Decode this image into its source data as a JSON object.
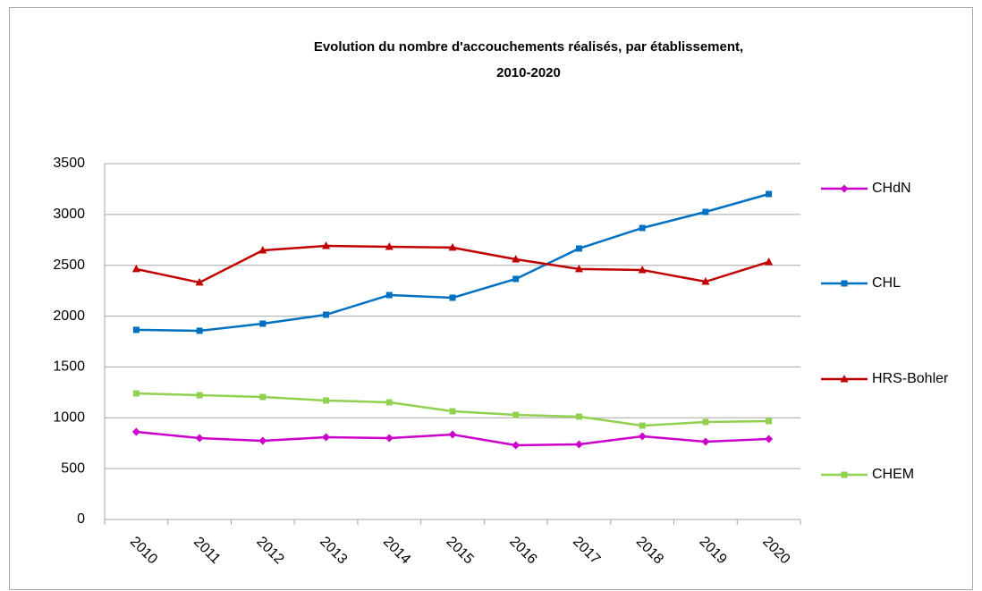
{
  "chart_data": {
    "type": "line",
    "title": [
      "Evolution du nombre d'accouchements réalisés, par établissement,",
      "2010-2020"
    ],
    "categories": [
      "2010",
      "2011",
      "2012",
      "2013",
      "2014",
      "2015",
      "2016",
      "2017",
      "2018",
      "2019",
      "2020"
    ],
    "series": [
      {
        "name": "CHdN",
        "color": "#cc00cc",
        "marker": "diamond",
        "values": [
          862,
          800,
          774,
          809,
          800,
          835,
          730,
          739,
          818,
          765,
          792
        ]
      },
      {
        "name": "CHL",
        "color": "#0070c0",
        "marker": "square",
        "values": [
          1865,
          1856,
          1926,
          2014,
          2207,
          2181,
          2366,
          2665,
          2867,
          3025,
          3201
        ]
      },
      {
        "name": "HRS-Bohler",
        "color": "#c00000",
        "marker": "triangle",
        "values": [
          2463,
          2331,
          2647,
          2691,
          2682,
          2674,
          2559,
          2463,
          2454,
          2339,
          2533
        ]
      },
      {
        "name": "CHEM",
        "color": "#92d050",
        "marker": "square",
        "values": [
          1240,
          1222,
          1205,
          1170,
          1152,
          1064,
          1029,
          1011,
          923,
          959,
          967
        ]
      }
    ],
    "ylim": [
      0,
      3500
    ],
    "yticks": [
      0,
      500,
      1000,
      1500,
      2000,
      2500,
      3000,
      3500
    ],
    "grid": true,
    "legend": "right"
  }
}
